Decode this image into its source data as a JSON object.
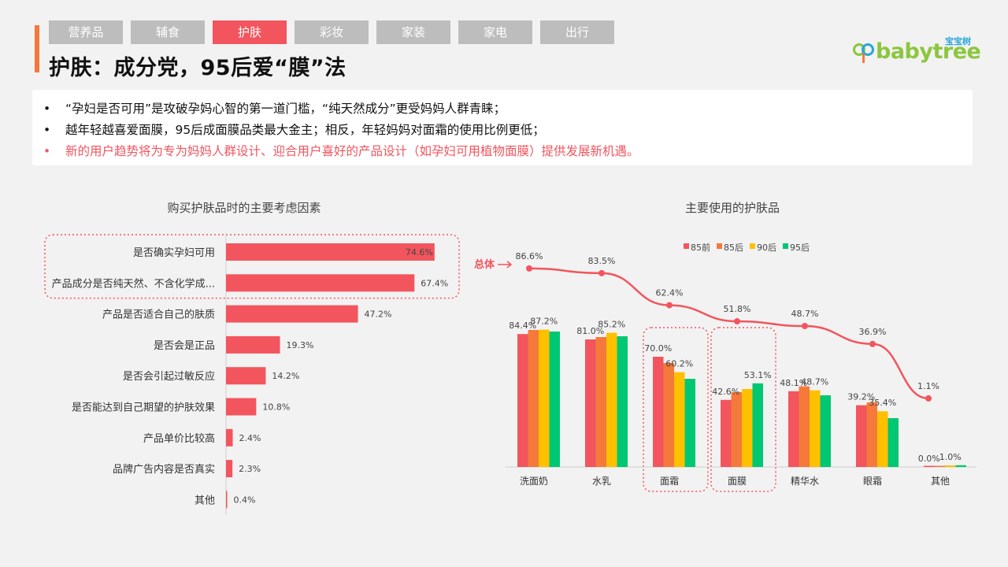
{
  "tabs": [
    "营养品",
    "辅食",
    "护肤",
    "彩妆",
    "家装",
    "家电",
    "出行"
  ],
  "active_tab_index": 2,
  "page_title": "护肤：成分党，95后爱“膜”法",
  "logo": {
    "text": "babytree",
    "cn": "宝宝树"
  },
  "bullets": [
    {
      "text": "“孕妇是否可用”是攻破孕妈心智的第一道门槛，“纯天然成分”更受妈妈人群青睐；",
      "highlight": false
    },
    {
      "text": "越年轻越喜爱面膜，95后成面膜品类最大金主；相反，年轻妈妈对面霜的使用比例更低；",
      "highlight": false
    },
    {
      "text": "新的用户趋势将为专为妈妈人群设计、迎合用户喜好的产品设计（如孕妇可用植物面膜）提供发展新机遇。",
      "highlight": true
    }
  ],
  "bullet_marker": "•",
  "colors": {
    "accent": "#f2555e",
    "orange": "#f4793b",
    "tab_inactive": "#bdbdbd",
    "logo_green": "#8cc63e"
  },
  "chart_data": [
    {
      "type": "bar",
      "orientation": "horizontal",
      "title": "购买护肤品时的主要考虑因素",
      "categories": [
        "是否确实孕妇可用",
        "产品成分是否纯天然、不含化学成...",
        "产品是否适合自己的肤质",
        "是否会是正品",
        "是否会引起过敏反应",
        "是否能达到自己期望的护肤效果",
        "产品单价比较高",
        "品牌广告内容是否真实",
        "其他"
      ],
      "values": [
        74.6,
        67.4,
        47.2,
        19.3,
        14.2,
        10.8,
        2.4,
        2.3,
        0.4
      ],
      "labels": [
        "74.6%",
        "67.4%",
        "47.2%",
        "19.3%",
        "14.2%",
        "10.8%",
        "2.4%",
        "2.3%",
        "0.4%"
      ],
      "xlim": [
        0,
        100
      ],
      "color": "#f2555e",
      "highlighted": [
        0,
        1
      ]
    },
    {
      "type": "bar+line",
      "title": "主要使用的护肤品",
      "categories": [
        "洗面奶",
        "水乳",
        "面霜",
        "面膜",
        "精华水",
        "眼霜",
        "其他"
      ],
      "series": [
        {
          "name": "85前",
          "color": "#f2555e",
          "values": [
            84.4,
            81.0,
            70.0,
            42.6,
            48.1,
            39.2,
            0.0
          ]
        },
        {
          "name": "85后",
          "color": "#f4793b",
          "values": [
            87.0,
            82.5,
            66.0,
            47.5,
            51.2,
            41.0,
            0.6
          ]
        },
        {
          "name": "90后",
          "color": "#ffc000",
          "values": [
            87.2,
            85.2,
            60.2,
            49.5,
            48.7,
            35.4,
            1.0
          ]
        },
        {
          "name": "95后",
          "color": "#00c772",
          "values": [
            86.0,
            83.0,
            56.0,
            53.1,
            45.5,
            31.0,
            1.1
          ]
        }
      ],
      "bar_labels": [
        {
          "category": 0,
          "series": 0,
          "text": "84.4%"
        },
        {
          "category": 0,
          "series": 2,
          "text": "87.2%"
        },
        {
          "category": 1,
          "series": 0,
          "text": "81.0%"
        },
        {
          "category": 1,
          "series": 2,
          "text": "85.2%"
        },
        {
          "category": 2,
          "series": 0,
          "text": "70.0%"
        },
        {
          "category": 2,
          "series": 2,
          "text": "60.2%"
        },
        {
          "category": 3,
          "series": 0,
          "text": "42.6%"
        },
        {
          "category": 3,
          "series": 3,
          "text": "53.1%"
        },
        {
          "category": 4,
          "series": 0,
          "text": "48.1%"
        },
        {
          "category": 4,
          "series": 2,
          "text": "48.7%"
        },
        {
          "category": 5,
          "series": 0,
          "text": "39.2%"
        },
        {
          "category": 5,
          "series": 2,
          "text": "35.4%"
        },
        {
          "category": 6,
          "series": 0,
          "text": "0.0%"
        },
        {
          "category": 6,
          "series": 2,
          "text": "1.0%"
        }
      ],
      "total_line": {
        "name": "总体",
        "color": "#f2555e",
        "values": [
          86.6,
          83.5,
          62.4,
          51.8,
          48.7,
          36.9,
          1.1
        ],
        "labels": [
          "86.6%",
          "83.5%",
          "62.4%",
          "51.8%",
          "48.7%",
          "36.9%",
          "1.1%"
        ]
      },
      "highlighted": [
        2,
        3
      ]
    }
  ]
}
